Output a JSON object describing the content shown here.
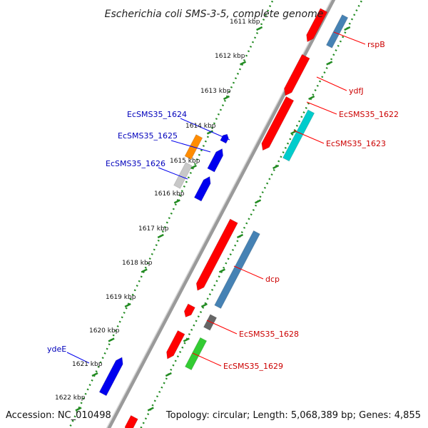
{
  "title": "Escherichia coli SMS-3-5, complete genome",
  "footer": {
    "accession": "Accession: NC_010498",
    "topology": "Topology: circular; Length: 5,068,389 bp; Genes: 4,855"
  },
  "ticks": [
    "1611 kbp",
    "1612 kbp",
    "1613 kbp",
    "1614 kbp",
    "1615 kbp",
    "1616 kbp",
    "1617 kbp",
    "1618 kbp",
    "1619 kbp",
    "1620 kbp",
    "1621 kbp",
    "1622 kbp"
  ],
  "labels_right": [
    "rspB",
    "ydfJ",
    "EcSMS35_1622",
    "EcSMS35_1623",
    "dcp",
    "EcSMS35_1628",
    "EcSMS35_1629"
  ],
  "labels_left": [
    "EcSMS35_1624",
    "EcSMS35_1625",
    "EcSMS35_1626",
    "ydeE"
  ],
  "colors": {
    "red_label": "#cc0000",
    "blue_label": "#0000bb",
    "forward_red": "#ff0000",
    "cyan": "#00cccc",
    "steel": "#4682b4",
    "orange": "#ff8c00",
    "blue": "#0000ee",
    "gray_light": "#c8c8c8",
    "gray_dark": "#666666",
    "green": "#33cc33",
    "tick_green": "#228b22"
  }
}
